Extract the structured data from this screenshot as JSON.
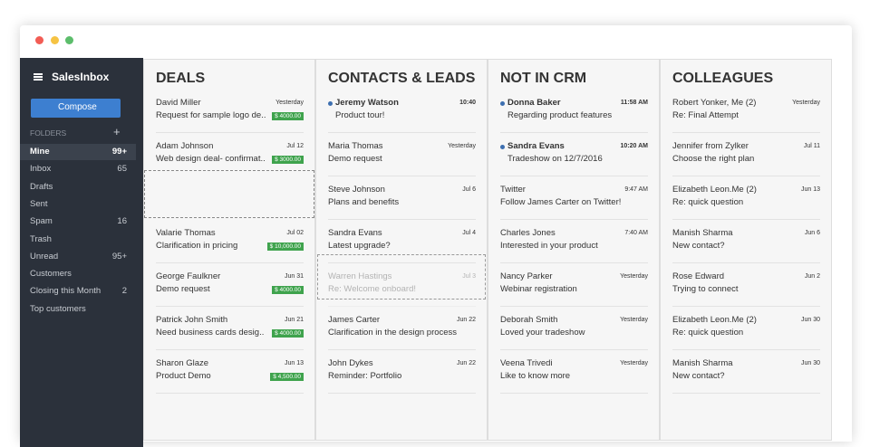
{
  "sidebar": {
    "app_name": "SalesInbox",
    "compose": "Compose",
    "folders_label": "FOLDERS",
    "folders": [
      {
        "name": "Mine",
        "count": "99+",
        "active": true
      },
      {
        "name": "Inbox",
        "count": 65
      },
      {
        "name": "Drafts"
      },
      {
        "name": "Sent"
      },
      {
        "name": "Spam",
        "count": 16
      },
      {
        "name": "Trash"
      },
      {
        "name": "Unread",
        "count": "95+"
      },
      {
        "name": "Customers"
      },
      {
        "name": "Closing this Month",
        "count": 2
      },
      {
        "name": "Top customers"
      }
    ]
  },
  "columns": [
    {
      "title": "DEALS",
      "cards": [
        {
          "name": "David Miller",
          "date": "Yesterday",
          "subject": "Request for sample logo de..",
          "amount": "$ 4000.00"
        },
        {
          "name": "Adam Johnson",
          "date": "Jul 12",
          "subject": "Web design deal- confirmat..",
          "amount": "$ 3000.00"
        },
        {
          "name": "Valarie Thomas",
          "date": "Jul 02",
          "subject": "Clarification in pricing",
          "amount": "$ 10,000.00"
        },
        {
          "name": "George Faulkner",
          "date": "Jun 31",
          "subject": "Demo request",
          "amount": "$ 4000.00"
        },
        {
          "name": "Patrick John Smith",
          "date": "Jun 21",
          "subject": "Need business cards desig..",
          "amount": "$ 4000.00"
        },
        {
          "name": "Sharon Glaze",
          "date": "Jun 13",
          "subject": "Product Demo",
          "amount": "$ 4,500.00"
        }
      ]
    },
    {
      "title": "CONTACTS & LEADS",
      "cards": [
        {
          "name": "Jeremy Watson",
          "date": "10:40",
          "subject": "Product tour!",
          "unread": true
        },
        {
          "name": "Maria Thomas",
          "date": "Yesterday",
          "subject": "Demo request"
        },
        {
          "name": "Steve Johnson",
          "date": "Jul 6",
          "subject": "Plans and benefits"
        },
        {
          "name": "Sandra Evans",
          "date": "Jul 4",
          "subject": "Latest upgrade?"
        },
        {
          "name": "Warren Hastings",
          "date": "Jul 3",
          "subject": "Re: Welcome onboard!",
          "dragging": true
        },
        {
          "name": "James Carter",
          "date": "Jun 22",
          "subject": "Clarification in the design process"
        },
        {
          "name": "John Dykes",
          "date": "Jun 22",
          "subject": "Reminder: Portfolio"
        }
      ]
    },
    {
      "title": "NOT IN CRM",
      "cards": [
        {
          "name": "Donna Baker",
          "date": "11:58 AM",
          "subject": "Regarding product features",
          "unread": true
        },
        {
          "name": "Sandra Evans",
          "date": "10:20 AM",
          "subject": "Tradeshow on 12/7/2016",
          "unread": true
        },
        {
          "name": "Twitter",
          "date": "9:47 AM",
          "subject": "Follow James Carter on Twitter!"
        },
        {
          "name": "Charles Jones",
          "date": "7:40 AM",
          "subject": "Interested in your product"
        },
        {
          "name": "Nancy Parker",
          "date": "Yesterday",
          "subject": "Webinar registration"
        },
        {
          "name": "Deborah Smith",
          "date": "Yesterday",
          "subject": "Loved your tradeshow"
        },
        {
          "name": "Veena Trivedi",
          "date": "Yesterday",
          "subject": "Like to know more"
        }
      ]
    },
    {
      "title": "COLLEAGUES",
      "cards": [
        {
          "name": "Robert Yonker, Me (2)",
          "date": "Yesterday",
          "subject": "Re: Final Attempt"
        },
        {
          "name": "Jennifer from Zylker",
          "date": "Jul 11",
          "subject": "Choose the right plan"
        },
        {
          "name": "Elizabeth Leon.Me (2)",
          "date": "Jun 13",
          "subject": "Re: quick question"
        },
        {
          "name": "Manish Sharma",
          "date": "Jun 6",
          "subject": "New contact?"
        },
        {
          "name": "Rose Edward",
          "date": "Jun 2",
          "subject": "Trying to connect"
        },
        {
          "name": "Elizabeth Leon.Me (2)",
          "date": "Jun 30",
          "subject": "Re: quick question"
        },
        {
          "name": "Manish Sharma",
          "date": "Jun 30",
          "subject": "New contact?"
        }
      ]
    }
  ]
}
